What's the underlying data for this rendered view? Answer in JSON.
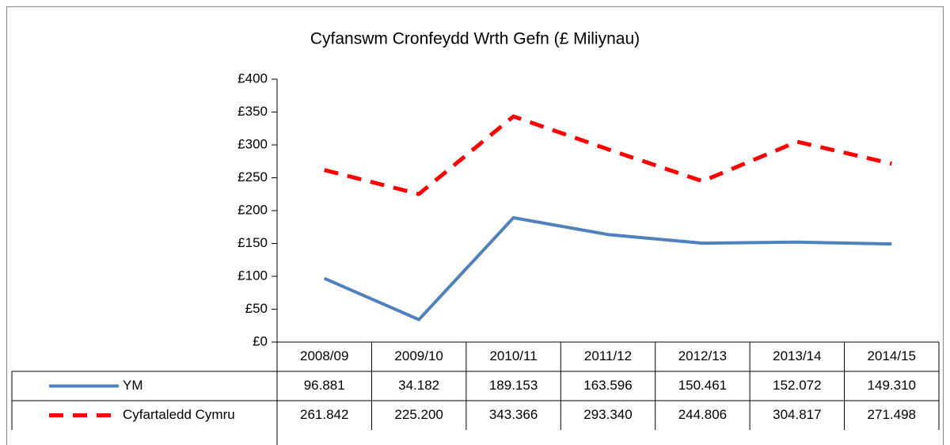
{
  "chart_data": {
    "type": "line",
    "title": "Cyfanswm Cronfeydd Wrth Gefn (£ Miliynau)",
    "categories": [
      "2008/09",
      "2009/10",
      "2010/11",
      "2011/12",
      "2012/13",
      "2013/14",
      "2014/15"
    ],
    "series": [
      {
        "name": "YM",
        "color": "#4f81bd",
        "dashed": false,
        "values": [
          96.881,
          34.182,
          189.153,
          163.596,
          150.461,
          152.072,
          149.31
        ],
        "value_labels": [
          "96.881",
          "34.182",
          "189.153",
          "163.596",
          "150.461",
          "152.072",
          "149.310"
        ]
      },
      {
        "name": "Cyfartaledd Cymru",
        "color": "#ff0000",
        "dashed": true,
        "values": [
          261.842,
          225.2,
          343.366,
          293.34,
          244.806,
          304.817,
          271.498
        ],
        "value_labels": [
          "261.842",
          "225.200",
          "343.366",
          "293.340",
          "244.806",
          "304.817",
          "271.498"
        ]
      }
    ],
    "ylim": [
      0,
      400
    ],
    "yticks": [
      {
        "value": 0,
        "label": "£0"
      },
      {
        "value": 50,
        "label": "£50"
      },
      {
        "value": 100,
        "label": "£100"
      },
      {
        "value": 150,
        "label": "£150"
      },
      {
        "value": 200,
        "label": "£200"
      },
      {
        "value": 250,
        "label": "£250"
      },
      {
        "value": 300,
        "label": "£300"
      },
      {
        "value": 350,
        "label": "£350"
      },
      {
        "value": 400,
        "label": "£400"
      }
    ],
    "grid": false,
    "data_table": true
  }
}
